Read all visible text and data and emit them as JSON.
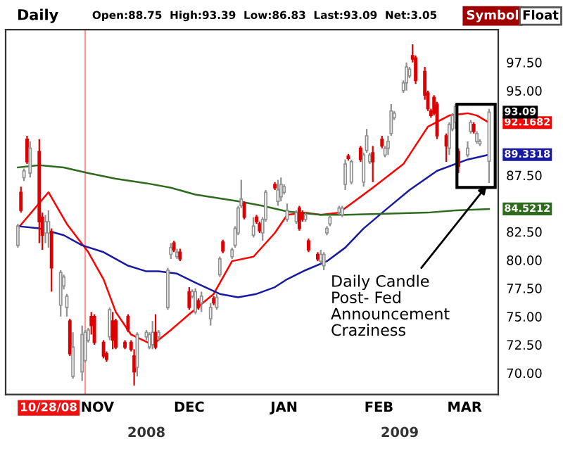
{
  "chart_data": {
    "type": "candlestick",
    "title": "Daily",
    "subtitle": "Open:88.75  High:93.39  Low:86.83  Last:93.09  Net:3.05",
    "series": [
      {
        "colors": [
          "#ffffff",
          "#dd0000",
          "#ffffff",
          "#dd0000",
          "#ffffff",
          "#dd0000",
          "#dd0000",
          "#ffffff",
          "#ffffff",
          "#dd0000",
          "#ffffff",
          "#ffffff",
          "#ffffff",
          "#dd0000",
          "#ffffff",
          "#ffffff",
          "#ffffff",
          "#ffffff",
          "#dd0000",
          "#dd0000",
          "#dd0000",
          "#dd0000",
          "#ffffff",
          "#dd0000",
          "#dd0000",
          "#dd0000",
          "#dd0000",
          "#dd0000",
          "#dd0000",
          "#ffffff",
          "#ffffff",
          "#ffffff",
          "#ffffff",
          "#dd0000",
          "#ffffff",
          "#ffffff",
          "#ffffff",
          "#dd0000",
          "#ffffff",
          "#dd0000",
          "#dd0000",
          "#ffffff",
          "#ffffff",
          "#dd0000",
          "#ffffff",
          "#ffffff",
          "#dd0000",
          "#ffffff",
          "#ffffff",
          "#dd0000",
          "#ffffff",
          "#ffffff",
          "#ffffff",
          "#ffffff",
          "#dd0000",
          "#ffffff",
          "#dd0000",
          "#dd0000",
          "#ffffff",
          "#ffffff",
          "#dd0000",
          "#ffffff",
          "#ffffff",
          "#ffffff",
          "#ffffff",
          "#ffffff",
          "#dd0000",
          "#dd0000",
          "#ffffff",
          "#dd0000",
          "#dd0000",
          "#ffffff",
          "#ffffff",
          "#ffffff",
          "#ffffff",
          "#ffffff",
          "#ffffff",
          "#ffffff",
          "#dd0000",
          "#ffffff",
          "#dd0000",
          "#ffffff",
          "#ffffff",
          "#ffffff",
          "#dd0000",
          "#dd0000",
          "#ffffff",
          "#ffffff",
          "#ffffff",
          "#ffffff",
          "#ffffff",
          "#ffffff",
          "#ffffff",
          "#dd0000",
          "#dd0000",
          "#dd0000",
          "#dd0000",
          "#dd0000",
          "#dd0000",
          "#dd0000",
          "#dd0000",
          "#ffffff",
          "#ffffff",
          "#ffffff",
          "#dd0000",
          "#ffffff",
          "#ffffff",
          "#dd0000",
          "#ffffff",
          "#ffffff",
          "#ffffff"
        ],
        "x": [
          "2008-10-06",
          "2008-10-07",
          "2008-10-08",
          "2008-10-09",
          "2008-10-10",
          "2008-10-13",
          "2008-10-14",
          "2008-10-15",
          "2008-10-16",
          "2008-10-17",
          "2008-10-20",
          "2008-10-21",
          "2008-10-22",
          "2008-10-23",
          "2008-10-24",
          "2008-10-27",
          "2008-10-28",
          "2008-10-29",
          "2008-10-30",
          "2008-10-31",
          "2008-11-03",
          "2008-11-04",
          "2008-11-05",
          "2008-11-06",
          "2008-11-07",
          "2008-11-10",
          "2008-11-11",
          "2008-11-12",
          "2008-11-13",
          "2008-11-14",
          "2008-11-17",
          "2008-11-18",
          "2008-11-19",
          "2008-11-20",
          "2008-11-21",
          "2008-11-24",
          "2008-11-25",
          "2008-11-26",
          "2008-11-27",
          "2008-11-28",
          "2008-12-01",
          "2008-12-02",
          "2008-12-03",
          "2008-12-04",
          "2008-12-05",
          "2008-12-08",
          "2008-12-09",
          "2008-12-10",
          "2008-12-11",
          "2008-12-12",
          "2008-12-15",
          "2008-12-16",
          "2008-12-17",
          "2008-12-18",
          "2008-12-19",
          "2008-12-22",
          "2008-12-23",
          "2008-12-24",
          "2008-12-25",
          "2008-12-26",
          "2008-12-29",
          "2008-12-30",
          "2008-12-31",
          "2009-01-01",
          "2009-01-02",
          "2009-01-05",
          "2009-01-06",
          "2009-01-07",
          "2009-01-08",
          "2009-01-09",
          "2009-01-12",
          "2009-01-13",
          "2009-01-14",
          "2009-01-15",
          "2009-01-16",
          "2009-01-19",
          "2009-01-20",
          "2009-01-21",
          "2009-01-22",
          "2009-01-23",
          "2009-01-26",
          "2009-01-27",
          "2009-01-28",
          "2009-01-29",
          "2009-01-30",
          "2009-02-02",
          "2009-02-03",
          "2009-02-04",
          "2009-02-05",
          "2009-02-06",
          "2009-02-09",
          "2009-02-10",
          "2009-02-11",
          "2009-02-12",
          "2009-02-13",
          "2009-02-16",
          "2009-02-17",
          "2009-02-18",
          "2009-02-19",
          "2009-02-20",
          "2009-02-23",
          "2009-02-24",
          "2009-02-25",
          "2009-02-26",
          "2009-02-27",
          "2009-03-02",
          "2009-03-03",
          "2009-03-04",
          "2009-03-05",
          "2009-03-06",
          "2009-03-09"
        ],
        "ohlc": [
          [
            81.3,
            83.2,
            81.1,
            83.0
          ],
          [
            86.0,
            86.5,
            84.2,
            84.4
          ],
          [
            87.3,
            88.1,
            87.0,
            87.9
          ],
          [
            90.7,
            91.0,
            88.5,
            88.7
          ],
          [
            87.7,
            90.5,
            87.3,
            89.9
          ],
          [
            89.6,
            90.7,
            81.5,
            83.4
          ],
          [
            83.8,
            84.2,
            80.9,
            82.2
          ],
          [
            82.4,
            84.0,
            81.5,
            83.4
          ],
          [
            82.4,
            84.4,
            81.1,
            83.4
          ],
          [
            82.5,
            82.8,
            77.2,
            79.3
          ],
          [
            76.0,
            79.1,
            75.0,
            78.9
          ],
          [
            77.7,
            78.7,
            77.4,
            78.5
          ],
          [
            75.8,
            77.0,
            75.0,
            76.8
          ],
          [
            74.6,
            74.8,
            71.5,
            71.7
          ],
          [
            69.7,
            73.6,
            69.5,
            72.3
          ],
          [
            70.1,
            74.2,
            69.3,
            73.4
          ],
          [
            71.1,
            73.8,
            70.9,
            73.6
          ],
          [
            72.9,
            74.0,
            72.7,
            73.8
          ],
          [
            75.0,
            75.4,
            73.4,
            74.2
          ],
          [
            75.0,
            75.2,
            72.5,
            72.7
          ],
          [
            72.7,
            72.9,
            71.3,
            71.5
          ],
          [
            71.7,
            71.9,
            71.0,
            71.2
          ],
          [
            73.2,
            75.8,
            72.9,
            75.6
          ],
          [
            74.6,
            75.4,
            72.1,
            72.9
          ],
          [
            74.6,
            74.8,
            72.1,
            72.3
          ],
          [
            72.7,
            72.9,
            72.1,
            72.3
          ],
          [
            75.0,
            75.2,
            73.6,
            73.8
          ],
          [
            72.7,
            72.9,
            71.9,
            72.1
          ],
          [
            71.5,
            72.1,
            68.9,
            70.1
          ],
          [
            70.5,
            73.6,
            69.7,
            73.4
          ],
          [
            73.2,
            73.8,
            72.9,
            73.6
          ],
          [
            72.3,
            73.6,
            72.1,
            73.4
          ],
          [
            72.5,
            74.6,
            72.1,
            73.6
          ],
          [
            73.6,
            75.2,
            72.1,
            72.3
          ],
          [
            73.2,
            73.8,
            72.9,
            73.6
          ],
          [
            75.8,
            79.3,
            75.6,
            79.1
          ],
          [
            80.5,
            81.5,
            80.1,
            81.1
          ],
          [
            81.5,
            81.7,
            80.7,
            80.9
          ],
          [
            80.3,
            81.0,
            80.1,
            80.7
          ],
          [
            80.7,
            81.0,
            79.9,
            80.1
          ],
          [
            77.2,
            77.6,
            75.6,
            75.8
          ],
          [
            76.8,
            77.4,
            76.6,
            77.2
          ],
          [
            75.4,
            77.5,
            75.2,
            77.2
          ],
          [
            76.4,
            76.6,
            75.6,
            75.8
          ],
          [
            76.2,
            77.2,
            75.4,
            76.8
          ],
          [
            74.8,
            76.2,
            74.2,
            75.8
          ],
          [
            76.6,
            76.8,
            76.0,
            76.2
          ],
          [
            75.8,
            77.0,
            75.6,
            76.7
          ],
          [
            78.7,
            80.3,
            78.5,
            80.1
          ],
          [
            81.6,
            81.8,
            80.6,
            80.8
          ],
          [
            80.3,
            81.1,
            80.1,
            80.9
          ],
          [
            81.3,
            83.0,
            81.1,
            82.8
          ],
          [
            82.4,
            84.8,
            82.2,
            84.6
          ],
          [
            84.8,
            87.1,
            84.6,
            85.4
          ],
          [
            85.0,
            85.2,
            83.6,
            83.8
          ],
          [
            82.2,
            83.8,
            82.0,
            83.0
          ],
          [
            83.8,
            84.0,
            83.2,
            83.4
          ],
          [
            83.2,
            83.4,
            82.4,
            82.6
          ],
          [
            82.4,
            83.8,
            81.7,
            83.6
          ],
          [
            83.6,
            86.2,
            83.4,
            86.0
          ],
          [
            86.7,
            86.9,
            86.2,
            86.4
          ],
          [
            85.2,
            87.1,
            84.8,
            86.2
          ],
          [
            85.6,
            87.3,
            85.2,
            86.7
          ],
          [
            86.0,
            86.7,
            85.8,
            86.5
          ],
          [
            83.6,
            85.0,
            83.4,
            84.4
          ],
          [
            83.4,
            84.4,
            83.2,
            84.2
          ],
          [
            84.6,
            84.8,
            82.6,
            82.8
          ],
          [
            84.2,
            84.4,
            83.4,
            83.6
          ],
          [
            83.6,
            84.2,
            83.4,
            84.0
          ],
          [
            81.7,
            81.9,
            80.7,
            80.9
          ],
          [
            80.5,
            80.7,
            79.9,
            80.1
          ],
          [
            79.9,
            80.9,
            79.7,
            80.5
          ],
          [
            79.5,
            80.7,
            79.1,
            80.5
          ],
          [
            82.4,
            83.0,
            82.2,
            82.8
          ],
          [
            83.2,
            84.0,
            83.0,
            83.8
          ],
          [
            84.2,
            84.8,
            84.0,
            84.6
          ],
          [
            84.0,
            84.8,
            83.8,
            84.6
          ],
          [
            86.7,
            88.9,
            86.2,
            88.5
          ],
          [
            89.2,
            89.4,
            88.8,
            89.0
          ],
          [
            86.9,
            88.9,
            86.7,
            88.7
          ],
          [
            89.9,
            90.1,
            88.7,
            88.9
          ],
          [
            86.9,
            89.5,
            86.5,
            89.3
          ],
          [
            89.7,
            91.6,
            89.5,
            91.0
          ],
          [
            88.7,
            89.5,
            88.5,
            89.3
          ],
          [
            89.5,
            90.1,
            86.9,
            88.7
          ],
          [
            90.7,
            91.0,
            89.9,
            90.1
          ],
          [
            89.3,
            90.1,
            89.1,
            89.9
          ],
          [
            89.9,
            91.0,
            89.3,
            90.5
          ],
          [
            91.2,
            93.8,
            91.0,
            93.2
          ],
          [
            92.6,
            93.2,
            92.4,
            93.0
          ],
          [
            95.0,
            95.9,
            94.8,
            95.7
          ],
          [
            95.7,
            97.5,
            95.0,
            97.1
          ],
          [
            96.3,
            97.1,
            96.1,
            96.9
          ],
          [
            98.1,
            99.1,
            97.5,
            97.8
          ],
          [
            97.9,
            98.1,
            95.6,
            95.9
          ],
          [
            96.7,
            97.1,
            94.2,
            94.6
          ],
          [
            94.8,
            95.0,
            93.2,
            93.4
          ],
          [
            93.2,
            93.4,
            92.6,
            92.8
          ],
          [
            94.4,
            94.6,
            92.8,
            93.0
          ],
          [
            93.8,
            94.0,
            90.7,
            91.0
          ],
          [
            91.0,
            91.2,
            88.7,
            90.1
          ],
          [
            89.9,
            92.2,
            89.3,
            92.0
          ],
          [
            91.6,
            93.0,
            91.4,
            92.8
          ],
          [
            92.2,
            93.8,
            91.6,
            93.6
          ],
          [
            89.6,
            89.9,
            87.7,
            88.3
          ],
          [
            89.3,
            90.5,
            89.1,
            89.9
          ],
          [
            91.4,
            92.4,
            91.2,
            92.2
          ],
          [
            92.0,
            92.2,
            91.2,
            91.4
          ],
          [
            90.5,
            91.4,
            90.3,
            91.2
          ],
          [
            90.3,
            90.7,
            90.1,
            90.5
          ],
          [
            88.75,
            93.39,
            86.83,
            93.09
          ]
        ]
      },
      {
        "type": "line",
        "color": "#ff0000",
        "x": [
          "2008-10-06",
          "2008-10-16",
          "2008-10-22",
          "2008-10-29",
          "2008-11-03",
          "2008-11-07",
          "2008-11-12",
          "2008-11-19",
          "2008-11-25",
          "2008-12-01",
          "2008-12-09",
          "2008-12-15",
          "2008-12-22",
          "2008-12-29",
          "2009-01-02",
          "2009-01-08",
          "2009-01-13",
          "2009-01-19",
          "2009-01-23",
          "2009-01-30",
          "2009-02-09",
          "2009-02-17",
          "2009-02-24",
          "2009-03-02",
          "2009-03-05",
          "2009-03-09"
        ],
        "values": [
          82.8,
          86.0,
          83.2,
          80.7,
          78.3,
          75.4,
          73.4,
          72.5,
          73.8,
          75.2,
          77.0,
          79.9,
          80.3,
          82.4,
          84.0,
          84.2,
          84.0,
          84.2,
          85.0,
          86.4,
          88.5,
          91.8,
          92.8,
          93.0,
          92.8,
          92.1682
        ],
        "value_labels": [
          null,
          null,
          null,
          null,
          null,
          null,
          null,
          null,
          null,
          null,
          null,
          null,
          null,
          null,
          null,
          null,
          null,
          null,
          null,
          null,
          null,
          null,
          null,
          null,
          null,
          "92.1682"
        ]
      },
      {
        "type": "line",
        "color": "#1a1aa0",
        "x": [
          "2008-10-06",
          "2008-10-13",
          "2008-10-21",
          "2008-10-27",
          "2008-11-03",
          "2008-11-11",
          "2008-11-17",
          "2008-11-21",
          "2008-11-27",
          "2008-12-03",
          "2008-12-11",
          "2008-12-17",
          "2008-12-23",
          "2008-12-29",
          "2009-01-02",
          "2009-01-08",
          "2009-01-15",
          "2009-01-21",
          "2009-01-27",
          "2009-02-03",
          "2009-02-11",
          "2009-02-20",
          "2009-03-02",
          "2009-03-09"
        ],
        "values": [
          83.0,
          82.8,
          82.2,
          81.3,
          80.7,
          79.5,
          79.0,
          79.0,
          78.8,
          78.0,
          77.0,
          76.7,
          77.0,
          77.6,
          78.3,
          79.1,
          79.9,
          81.1,
          82.8,
          84.4,
          86.2,
          87.9,
          88.9,
          89.3318
        ],
        "value_labels": [
          null,
          null,
          null,
          null,
          null,
          null,
          null,
          null,
          null,
          null,
          null,
          null,
          null,
          null,
          null,
          null,
          null,
          null,
          null,
          null,
          null,
          null,
          null,
          "89.3318"
        ]
      },
      {
        "type": "line",
        "color": "#2e6b1e",
        "x": [
          "2008-10-06",
          "2008-10-13",
          "2008-10-21",
          "2008-10-29",
          "2008-11-07",
          "2008-11-17",
          "2008-11-25",
          "2008-12-03",
          "2008-12-17",
          "2008-12-25",
          "2009-01-02",
          "2009-01-13",
          "2009-01-21",
          "2009-02-03",
          "2009-02-17",
          "2009-02-26",
          "2009-03-09"
        ],
        "values": [
          88.2,
          88.4,
          88.2,
          87.7,
          87.2,
          86.8,
          86.4,
          85.8,
          85.2,
          84.8,
          84.3,
          84.0,
          84.0,
          84.1,
          84.2,
          84.4,
          84.5212
        ],
        "value_labels": [
          null,
          null,
          null,
          null,
          null,
          null,
          null,
          null,
          null,
          null,
          null,
          null,
          null,
          null,
          null,
          null,
          "84.5212"
        ]
      }
    ],
    "xlim": [
      "2008-10-02",
      "2009-03-12"
    ],
    "xticks": [
      {
        "value": "2008-11-01",
        "label": "NOV"
      },
      {
        "value": "2008-12-01",
        "label": "DEC"
      },
      {
        "value": "2009-01-01",
        "label": "JAN"
      },
      {
        "value": "2009-02-01",
        "label": "FEB"
      },
      {
        "value": "2009-03-01",
        "label": "MAR"
      }
    ],
    "ylim": [
      68.1,
      100.4
    ],
    "yticks": [
      {
        "value": 70,
        "label": "70.00"
      },
      {
        "value": 72.5,
        "label": "72.50"
      },
      {
        "value": 75,
        "label": "75.00"
      },
      {
        "value": 77.5,
        "label": "77.50"
      },
      {
        "value": 80,
        "label": "80.00"
      },
      {
        "value": 82.5,
        "label": "82.50"
      },
      {
        "value": 87.5,
        "label": "87.50"
      },
      {
        "value": 95,
        "label": "95.00"
      },
      {
        "value": 97.5,
        "label": "97.50"
      }
    ],
    "ref_lines": [
      {
        "axis": "x",
        "value": "2008-10-28",
        "label": "10/28/08",
        "color": "#ff9999"
      }
    ],
    "annotations": [
      "Symbol",
      "Float",
      "2008",
      "2009",
      {
        "text": "Daily Candle\nPost- Fed\nAnnouncement\nCraziness",
        "x": "2009-03-09",
        "y": 86.83
      },
      {
        "text": "93.09",
        "x": "2009-03-09",
        "y": 93.09
      }
    ],
    "grid": false,
    "legend": false
  }
}
